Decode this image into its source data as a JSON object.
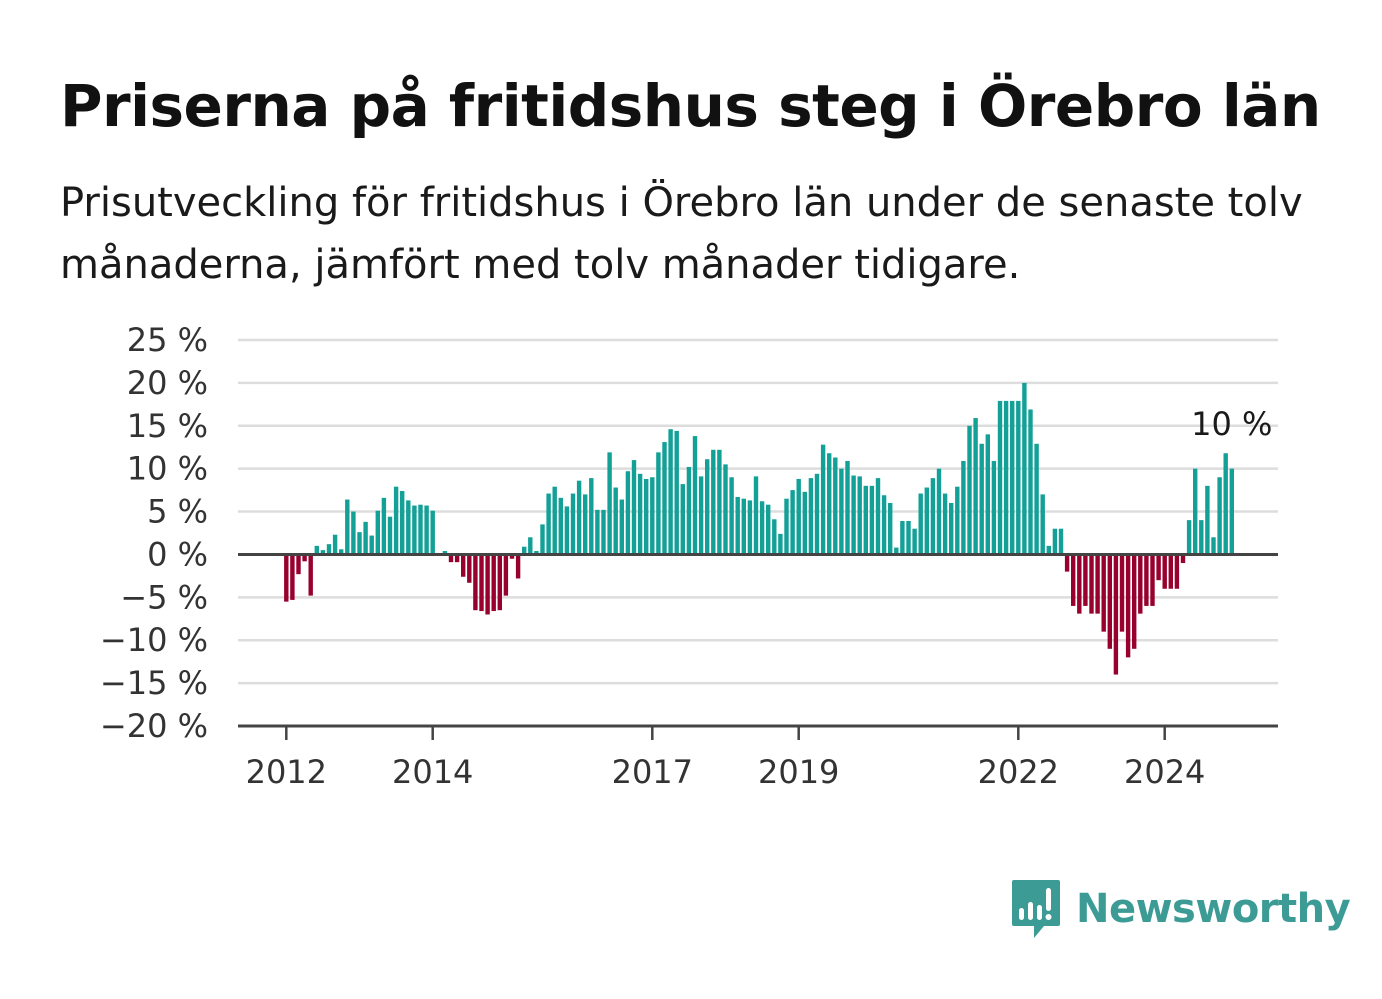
{
  "colors": {
    "positive": "#12a097",
    "negative": "#98002e",
    "grid": "#dddddd",
    "axis": "#444444",
    "brand": "#3c9c95"
  },
  "brand": {
    "name": "Newsworthy",
    "icon": "bar-chart-speech-bubble-icon"
  },
  "chart_data": {
    "type": "bar",
    "title": "Priserna på fritidshus steg i Örebro län",
    "subtitle": "Prisutveckling för fritidshus i Örebro län under de senaste tolv månaderna, jämfört med tolv månader tidigare.",
    "ylim": [
      -20,
      25
    ],
    "yticks": [
      25,
      20,
      15,
      10,
      5,
      0,
      -5,
      -10,
      -15,
      -20
    ],
    "ytick_labels": [
      "25 %",
      "20 %",
      "15 %",
      "10 %",
      "5 %",
      "0 %",
      "−5 %",
      "−10 %",
      "−15 %",
      "−20 %"
    ],
    "xticks": [
      "2012",
      "2014",
      "2017",
      "2019",
      "2022",
      "2024"
    ],
    "grid": true,
    "start": "2012-01",
    "annotation": {
      "label": "10 %",
      "value": 10
    },
    "values": [
      -5.5,
      -5.3,
      -2.3,
      -0.8,
      -4.8,
      1.0,
      0.5,
      1.2,
      2.3,
      0.6,
      6.4,
      5.0,
      2.6,
      3.8,
      2.2,
      5.1,
      6.6,
      4.4,
      7.9,
      7.4,
      6.3,
      5.7,
      5.8,
      5.7,
      5.1,
      0.0,
      0.4,
      -0.9,
      -0.9,
      -2.6,
      -3.3,
      -6.5,
      -6.6,
      -7.0,
      -6.6,
      -6.5,
      -4.8,
      -0.5,
      -2.8,
      0.9,
      2.0,
      0.4,
      3.5,
      7.1,
      7.9,
      6.6,
      5.6,
      7.1,
      8.6,
      7.0,
      8.9,
      5.2,
      5.2,
      11.9,
      7.8,
      6.4,
      9.7,
      11.0,
      9.4,
      8.8,
      9.0,
      11.9,
      13.1,
      14.6,
      14.4,
      8.2,
      10.2,
      13.8,
      9.1,
      11.1,
      12.2,
      12.2,
      10.5,
      9.0,
      6.7,
      6.5,
      6.3,
      9.1,
      6.2,
      5.8,
      4.1,
      2.4,
      6.5,
      7.5,
      8.8,
      7.3,
      8.9,
      9.4,
      12.8,
      11.8,
      11.3,
      10.0,
      10.9,
      9.2,
      9.1,
      8.0,
      8.0,
      8.9,
      6.9,
      6.0,
      0.8,
      3.9,
      3.9,
      3.0,
      7.1,
      7.8,
      8.9,
      10.0,
      7.1,
      6.0,
      7.9,
      10.9,
      15.0,
      15.9,
      12.9,
      14.0,
      10.9,
      17.9,
      17.9,
      17.9,
      17.9,
      20.0,
      16.9,
      12.9,
      7.0,
      1.0,
      3.0,
      3.0,
      -2.0,
      -6.0,
      -6.9,
      -6.0,
      -6.9,
      -6.9,
      -9.0,
      -11.0,
      -14.0,
      -9.0,
      -12.0,
      -11.0,
      -6.9,
      -6.0,
      -6.0,
      -3.0,
      -4.0,
      -4.0,
      -4.0,
      -1.0,
      4.0,
      10.0,
      4.0,
      8.0,
      2.0,
      9.0,
      11.8,
      10.0
    ]
  }
}
